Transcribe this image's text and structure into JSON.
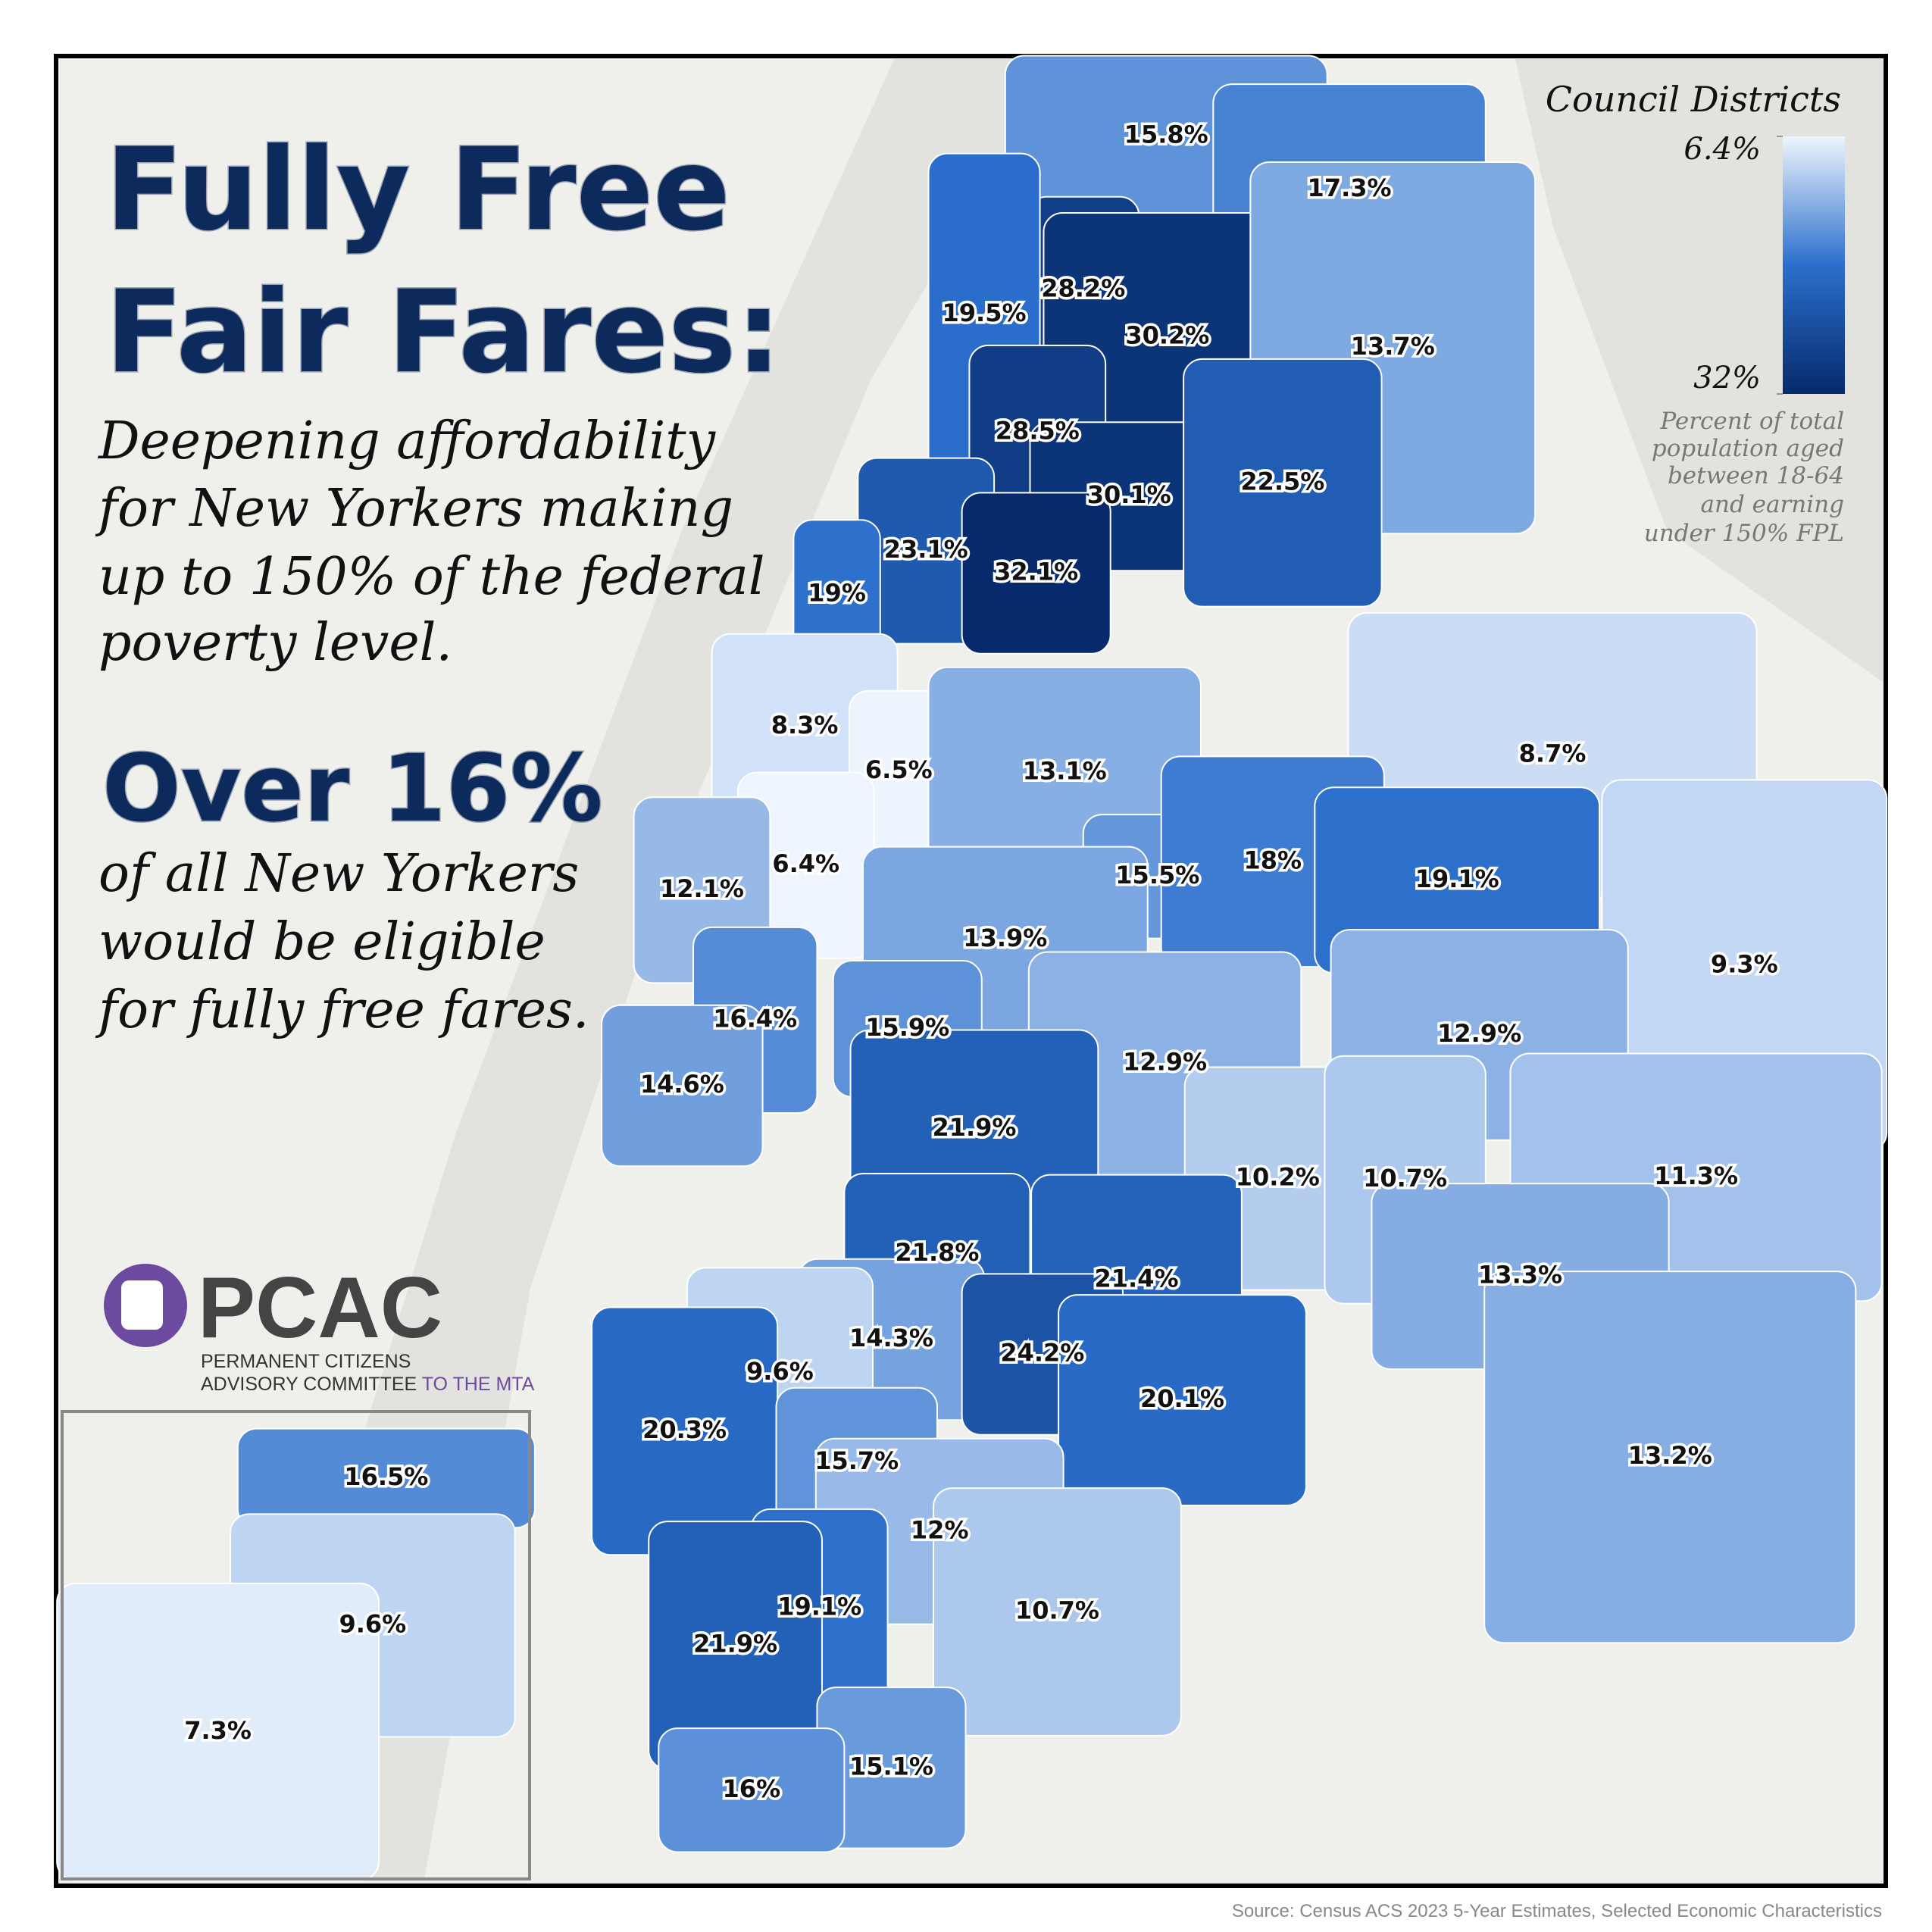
{
  "header": {
    "title": [
      "Fully Free",
      "Fair Fares:"
    ],
    "subtitle": [
      "Deepening affordability",
      "for New Yorkers making",
      "up to 150% of the federal",
      "poverty level."
    ],
    "headline": "Over 16%",
    "headline_text": [
      "of all New Yorkers",
      "would be eligible",
      "for fully free fares."
    ]
  },
  "logo": {
    "name": "PCAC",
    "lines": [
      "PERMANENT CITIZENS",
      "ADVISORY COMMITTEE"
    ],
    "suffix": "TO THE MTA"
  },
  "legend": {
    "title": "Council Districts",
    "ticks": [
      {
        "value": 6.4,
        "label": "6.4%"
      },
      {
        "value": 32,
        "label": "32%"
      }
    ],
    "colors": [
      "#eef5fe",
      "#2b6fcc",
      "#062a6b"
    ],
    "note": [
      "Percent of total",
      "population aged",
      "between 18-64",
      "and earning",
      "under 150% FPL"
    ]
  },
  "districts": [
    {
      "label": "15.8%",
      "value": 15.8
    },
    {
      "label": "17.3%",
      "value": 17.3
    },
    {
      "label": "28.2%",
      "value": 28.2
    },
    {
      "label": "19.5%",
      "value": 19.5
    },
    {
      "label": "30.2%",
      "value": 30.2
    },
    {
      "label": "13.7%",
      "value": 13.7
    },
    {
      "label": "28.5%",
      "value": 28.5
    },
    {
      "label": "30.1%",
      "value": 30.1
    },
    {
      "label": "22.5%",
      "value": 22.5
    },
    {
      "label": "23.1%",
      "value": 23.1
    },
    {
      "label": "32.1%",
      "value": 32.1
    },
    {
      "label": "19%",
      "value": 19
    },
    {
      "label": "8.3%",
      "value": 8.3
    },
    {
      "label": "6.5%",
      "value": 6.5
    },
    {
      "label": "13.1%",
      "value": 13.1
    },
    {
      "label": "8.7%",
      "value": 8.7
    },
    {
      "label": "6.4%",
      "value": 6.4
    },
    {
      "label": "15.5%",
      "value": 15.5
    },
    {
      "label": "18%",
      "value": 18
    },
    {
      "label": "19.1%",
      "value": 19.1
    },
    {
      "label": "12.1%",
      "value": 12.1
    },
    {
      "label": "13.9%",
      "value": 13.9
    },
    {
      "label": "9.3%",
      "value": 9.3
    },
    {
      "label": "16.4%",
      "value": 16.4
    },
    {
      "label": "15.9%",
      "value": 15.9
    },
    {
      "label": "12.9%",
      "value": 12.9
    },
    {
      "label": "12.9%",
      "value": 12.9
    },
    {
      "label": "14.6%",
      "value": 14.6
    },
    {
      "label": "21.9%",
      "value": 21.9
    },
    {
      "label": "10.2%",
      "value": 10.2
    },
    {
      "label": "10.7%",
      "value": 10.7
    },
    {
      "label": "11.3%",
      "value": 11.3
    },
    {
      "label": "21.8%",
      "value": 21.8
    },
    {
      "label": "21.4%",
      "value": 21.4
    },
    {
      "label": "13.3%",
      "value": 13.3
    },
    {
      "label": "14.3%",
      "value": 14.3
    },
    {
      "label": "24.2%",
      "value": 24.2
    },
    {
      "label": "9.6%",
      "value": 9.6
    },
    {
      "label": "20.3%",
      "value": 20.3
    },
    {
      "label": "20.1%",
      "value": 20.1
    },
    {
      "label": "15.7%",
      "value": 15.7
    },
    {
      "label": "13.2%",
      "value": 13.2
    },
    {
      "label": "12%",
      "value": 12
    },
    {
      "label": "19.1%",
      "value": 19.1
    },
    {
      "label": "21.9%",
      "value": 21.9
    },
    {
      "label": "10.7%",
      "value": 10.7
    },
    {
      "label": "15.1%",
      "value": 15.1
    },
    {
      "label": "16%",
      "value": 16
    },
    {
      "label": "16.5%",
      "value": 16.5
    },
    {
      "label": "9.6%",
      "value": 9.6
    },
    {
      "label": "7.3%",
      "value": 7.3
    }
  ],
  "source": "Source: Census ACS 2023 5-Year Estimates, Selected Economic Characteristics"
}
